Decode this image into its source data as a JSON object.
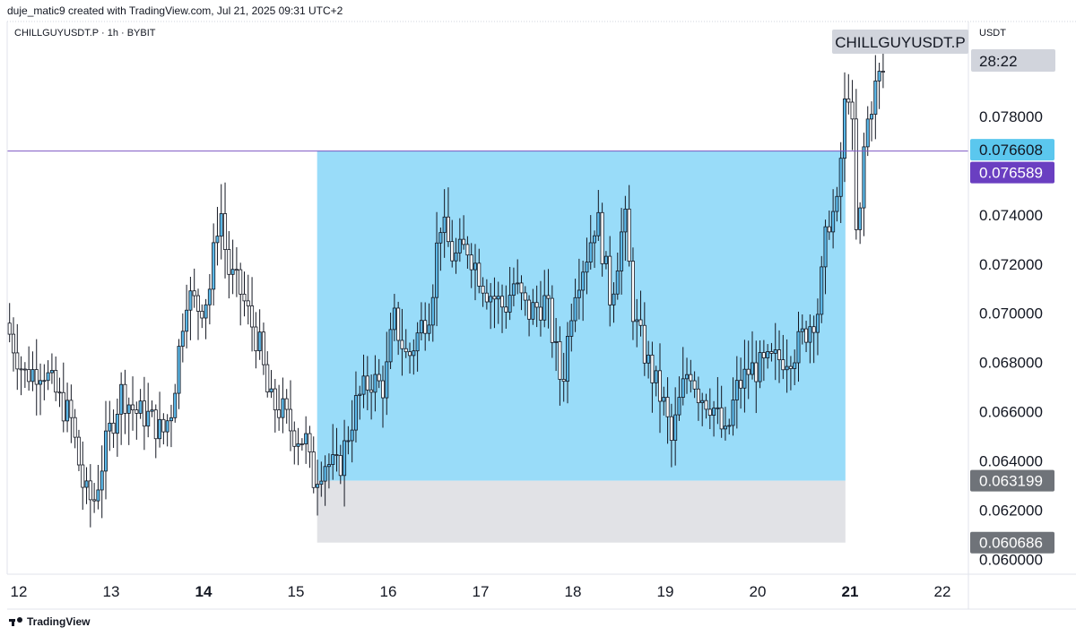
{
  "header": {
    "credit": "duje_matic9 created with TradingView.com, Jul 21, 2025 09:31 UTC+2",
    "symbol_info": "CHILLGUYUSDT.P · 1h · BYBIT",
    "currency": "USDT"
  },
  "footer": {
    "brand": "TradingView"
  },
  "colors": {
    "up_candle": "#5bb8e8",
    "down_candle": "#ffffff",
    "wick": "#131722",
    "range_box": "#99dcf9",
    "base_box": "#e1e2e6",
    "resistance_line": "#7e57c2",
    "price_tag_blue": "#5bc7ee",
    "price_tag_purple": "#6a3fc1",
    "price_tag_gray": "#6f7379"
  },
  "chart_data": {
    "type": "candlestick",
    "interval": "1h",
    "symbol": "CHILLGUYUSDT.P",
    "exchange": "BYBIT",
    "x_tick_labels": [
      "12",
      "13",
      "14",
      "15",
      "16",
      "17",
      "18",
      "19",
      "20",
      "21",
      "22"
    ],
    "x_tick_days": [
      12,
      13,
      14,
      15,
      16,
      17,
      18,
      19,
      20,
      21,
      22
    ],
    "bold_ticks": [
      "14",
      "21"
    ],
    "xlim_days": [
      11.9,
      22.3
    ],
    "y_tick_labels": [
      "0.078000",
      "0.074000",
      "0.072000",
      "0.070000",
      "0.068000",
      "0.066000",
      "0.064000",
      "0.062000",
      "0.060000"
    ],
    "ylim": [
      0.05973,
      0.08127
    ],
    "price_path_anchors": [
      [
        11.9,
        0.0696
      ],
      [
        12.1,
        0.0675
      ],
      [
        12.3,
        0.0678
      ],
      [
        12.5,
        0.0663
      ],
      [
        12.6,
        0.0658
      ],
      [
        12.75,
        0.0627
      ],
      [
        12.85,
        0.0623
      ],
      [
        13.0,
        0.0649
      ],
      [
        13.15,
        0.0668
      ],
      [
        13.3,
        0.066
      ],
      [
        13.45,
        0.0658
      ],
      [
        13.6,
        0.0651
      ],
      [
        13.7,
        0.0662
      ],
      [
        13.85,
        0.0708
      ],
      [
        14.0,
        0.0702
      ],
      [
        14.1,
        0.0708
      ],
      [
        14.22,
        0.0745
      ],
      [
        14.3,
        0.0718
      ],
      [
        14.45,
        0.0708
      ],
      [
        14.55,
        0.0697
      ],
      [
        14.65,
        0.0686
      ],
      [
        14.75,
        0.0664
      ],
      [
        14.9,
        0.066
      ],
      [
        15.0,
        0.0652
      ],
      [
        15.15,
        0.0648
      ],
      [
        15.22,
        0.0632
      ],
      [
        15.35,
        0.064
      ],
      [
        15.5,
        0.0636
      ],
      [
        15.7,
        0.0664
      ],
      [
        15.85,
        0.0673
      ],
      [
        16.0,
        0.067
      ],
      [
        16.1,
        0.0698
      ],
      [
        16.25,
        0.0681
      ],
      [
        16.4,
        0.0695
      ],
      [
        16.5,
        0.0703
      ],
      [
        16.6,
        0.0738
      ],
      [
        16.75,
        0.0722
      ],
      [
        16.9,
        0.0727
      ],
      [
        17.1,
        0.071
      ],
      [
        17.3,
        0.0702
      ],
      [
        17.4,
        0.0712
      ],
      [
        17.55,
        0.07
      ],
      [
        17.75,
        0.0705
      ],
      [
        17.85,
        0.0685
      ],
      [
        17.92,
        0.067
      ],
      [
        18.05,
        0.071
      ],
      [
        18.2,
        0.0725
      ],
      [
        18.3,
        0.074
      ],
      [
        18.45,
        0.0705
      ],
      [
        18.6,
        0.074
      ],
      [
        18.7,
        0.0698
      ],
      [
        18.85,
        0.068
      ],
      [
        18.95,
        0.067
      ],
      [
        19.05,
        0.066
      ],
      [
        19.1,
        0.0646
      ],
      [
        19.2,
        0.0665
      ],
      [
        19.3,
        0.0679
      ],
      [
        19.4,
        0.0668
      ],
      [
        19.55,
        0.0663
      ],
      [
        19.7,
        0.0648
      ],
      [
        19.8,
        0.0668
      ],
      [
        19.95,
        0.0677
      ],
      [
        20.1,
        0.0678
      ],
      [
        20.25,
        0.0681
      ],
      [
        20.45,
        0.0685
      ],
      [
        20.55,
        0.0692
      ],
      [
        20.7,
        0.0702
      ],
      [
        20.8,
        0.0738
      ],
      [
        20.9,
        0.0742
      ],
      [
        21.0,
        0.0792
      ],
      [
        21.05,
        0.079
      ],
      [
        21.12,
        0.072
      ],
      [
        21.2,
        0.0772
      ],
      [
        21.3,
        0.079
      ],
      [
        21.38,
        0.0798
      ]
    ],
    "annotations": {
      "range_box": {
        "from_day": 15.23,
        "to_day": 20.95,
        "top": 0.076608,
        "bottom": 0.063199
      },
      "base_box": {
        "from_day": 15.23,
        "to_day": 20.95,
        "top": 0.063199,
        "bottom": 0.060686
      },
      "horizontal_line": {
        "price": 0.076589
      }
    },
    "price_tags": [
      {
        "label": "CHILLGUYUSDT.P",
        "countdown": "28:22",
        "style": "last"
      },
      {
        "label": "0.076608",
        "price": 0.076608,
        "style": "blue"
      },
      {
        "label": "0.076589",
        "price": 0.076589,
        "style": "purple"
      },
      {
        "label": "0.063199",
        "price": 0.063199,
        "style": "gray"
      },
      {
        "label": "0.060686",
        "price": 0.060686,
        "style": "gray"
      }
    ]
  }
}
